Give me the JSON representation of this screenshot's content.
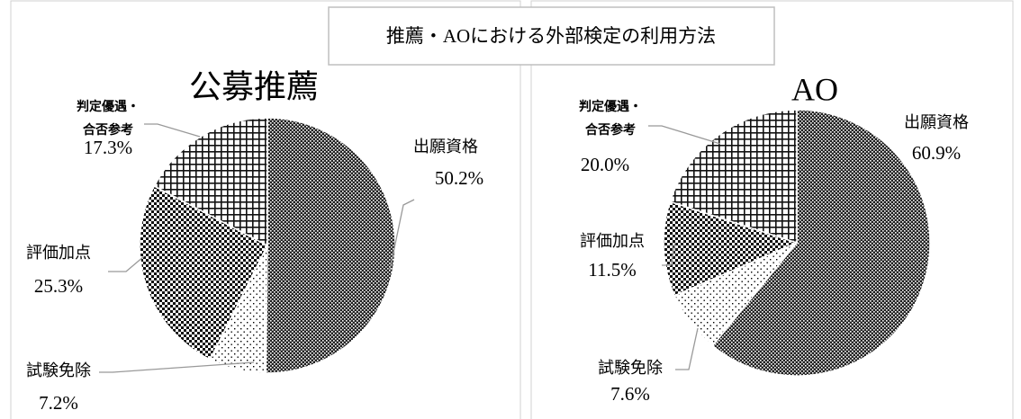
{
  "title": "推薦・AOにおける外部検定の利用方法",
  "chart_data": [
    {
      "type": "pie",
      "title": "公募推薦",
      "categories": [
        "出願資格",
        "試験免除",
        "評価加点",
        "判定優遇・合否参考"
      ],
      "values": [
        50.2,
        7.2,
        25.3,
        17.3
      ],
      "value_labels": [
        "50.2%",
        "7.2%",
        "25.3%",
        "17.3%"
      ]
    },
    {
      "type": "pie",
      "title": "AO",
      "categories": [
        "出願資格",
        "試験免除",
        "評価加点",
        "判定優遇・合否参考"
      ],
      "values": [
        60.9,
        7.6,
        11.5,
        20.0
      ],
      "value_labels": [
        "60.9%",
        "7.6%",
        "11.5%",
        "20.0%"
      ]
    }
  ]
}
